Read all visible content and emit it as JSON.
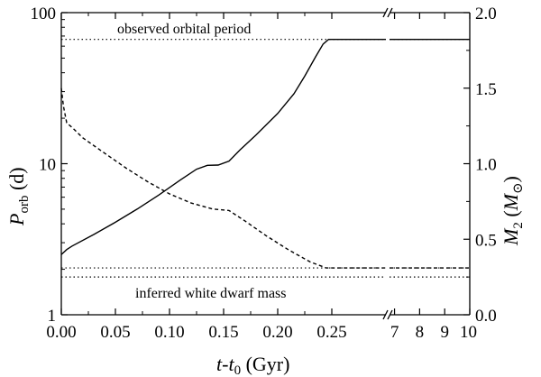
{
  "chart_data": {
    "type": "line",
    "title": "",
    "xlabel": {
      "main": "t",
      "dash": "-",
      "main2": "t",
      "sub": "0",
      "unit": " (Gyr)"
    },
    "ylabel_left": {
      "main": "P",
      "sub": "orb",
      "unit": " (d)"
    },
    "ylabel_right": {
      "main": "M",
      "sub": "2",
      "open": " (",
      "var": "M",
      "sym": "⊙",
      "close": ")"
    },
    "x_segment_1": {
      "range": [
        0.0,
        0.3
      ],
      "ticks": [
        "0.00",
        "0.05",
        "0.10",
        "0.15",
        "0.20",
        "0.25"
      ],
      "tick_values": [
        0.0,
        0.05,
        0.1,
        0.15,
        0.2,
        0.25
      ]
    },
    "x_segment_2": {
      "range": [
        6.8,
        10.0
      ],
      "ticks": [
        "7",
        "8",
        "9",
        "10"
      ],
      "tick_values": [
        7,
        8,
        9,
        10
      ]
    },
    "y_left": {
      "scale": "log",
      "range": [
        1,
        100
      ],
      "ticks": [
        "1",
        "10",
        "100"
      ],
      "tick_values": [
        1,
        10,
        100
      ]
    },
    "y_right": {
      "scale": "linear",
      "range": [
        0.0,
        2.0
      ],
      "ticks": [
        "0.0",
        "0.5",
        "1.0",
        "1.5",
        "2.0"
      ],
      "tick_values": [
        0.0,
        0.5,
        1.0,
        1.5,
        2.0
      ]
    },
    "reference_lines": [
      {
        "name": "observed orbital period",
        "axis": "left",
        "value": 66.5,
        "label": "observed orbital period"
      },
      {
        "name": "inferred white dwarf mass upper",
        "axis": "right",
        "value": 0.31,
        "label": ""
      },
      {
        "name": "inferred white dwarf mass lower",
        "axis": "right",
        "value": 0.25,
        "label": "inferred white dwarf mass"
      }
    ],
    "series": [
      {
        "name": "orbital period",
        "axis": "left",
        "style": "solid",
        "x": [
          0.0,
          0.005,
          0.01,
          0.03,
          0.05,
          0.07,
          0.09,
          0.11,
          0.125,
          0.135,
          0.145,
          0.155,
          0.165,
          0.18,
          0.2,
          0.215,
          0.225,
          0.235,
          0.242,
          0.247
        ],
        "y": [
          2.5,
          2.7,
          2.85,
          3.4,
          4.1,
          5.0,
          6.2,
          7.8,
          9.2,
          9.75,
          9.8,
          10.4,
          12.3,
          15.5,
          21.5,
          29.0,
          38.0,
          51.0,
          62.0,
          66.5
        ],
        "x2": [
          6.8,
          7.0,
          8.2,
          10.0
        ],
        "y2": [
          66.5,
          66.5,
          66.5,
          66.5
        ]
      },
      {
        "name": "donor mass",
        "axis": "right",
        "style": "dashed",
        "x": [
          0.0,
          0.002,
          0.005,
          0.01,
          0.02,
          0.04,
          0.06,
          0.08,
          0.1,
          0.12,
          0.14,
          0.155,
          0.17,
          0.19,
          0.21,
          0.23,
          0.245
        ],
        "y": [
          1.5,
          1.38,
          1.27,
          1.24,
          1.17,
          1.07,
          0.97,
          0.88,
          0.8,
          0.74,
          0.7,
          0.69,
          0.62,
          0.52,
          0.43,
          0.35,
          0.31
        ],
        "x2": [
          6.8,
          7.0,
          8.2,
          10.0
        ],
        "y2": [
          0.31,
          0.31,
          0.31,
          0.31
        ]
      }
    ]
  }
}
